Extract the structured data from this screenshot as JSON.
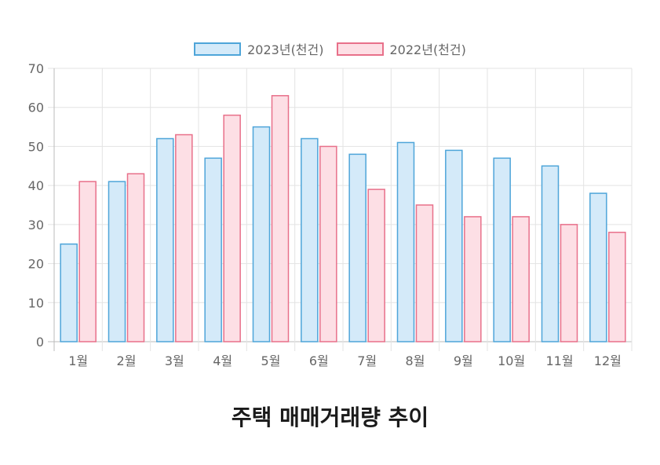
{
  "chart_data": {
    "type": "bar",
    "title": "주택 매매거래량 추이",
    "categories": [
      "1월",
      "2월",
      "3월",
      "4월",
      "5월",
      "6월",
      "7월",
      "8월",
      "9월",
      "10월",
      "11월",
      "12월"
    ],
    "series": [
      {
        "name": "2023년(천건)",
        "values": [
          25,
          41,
          52,
          47,
          55,
          52,
          48,
          51,
          49,
          47,
          45,
          38
        ],
        "fill": "#d4eaf9",
        "stroke": "#4ea5d9"
      },
      {
        "name": "2022년(천건)",
        "values": [
          41,
          43,
          53,
          58,
          63,
          50,
          39,
          35,
          32,
          32,
          30,
          28
        ],
        "fill": "#fddfe5",
        "stroke": "#e8708a"
      }
    ],
    "ylim": [
      0,
      70
    ],
    "yticks": [
      0,
      10,
      20,
      30,
      40,
      50,
      60,
      70
    ],
    "grid": true,
    "legend_position": "top"
  },
  "colors": {
    "grid": "#e3e3e3",
    "axis": "#bbbbbb",
    "tick_text": "#666666"
  }
}
